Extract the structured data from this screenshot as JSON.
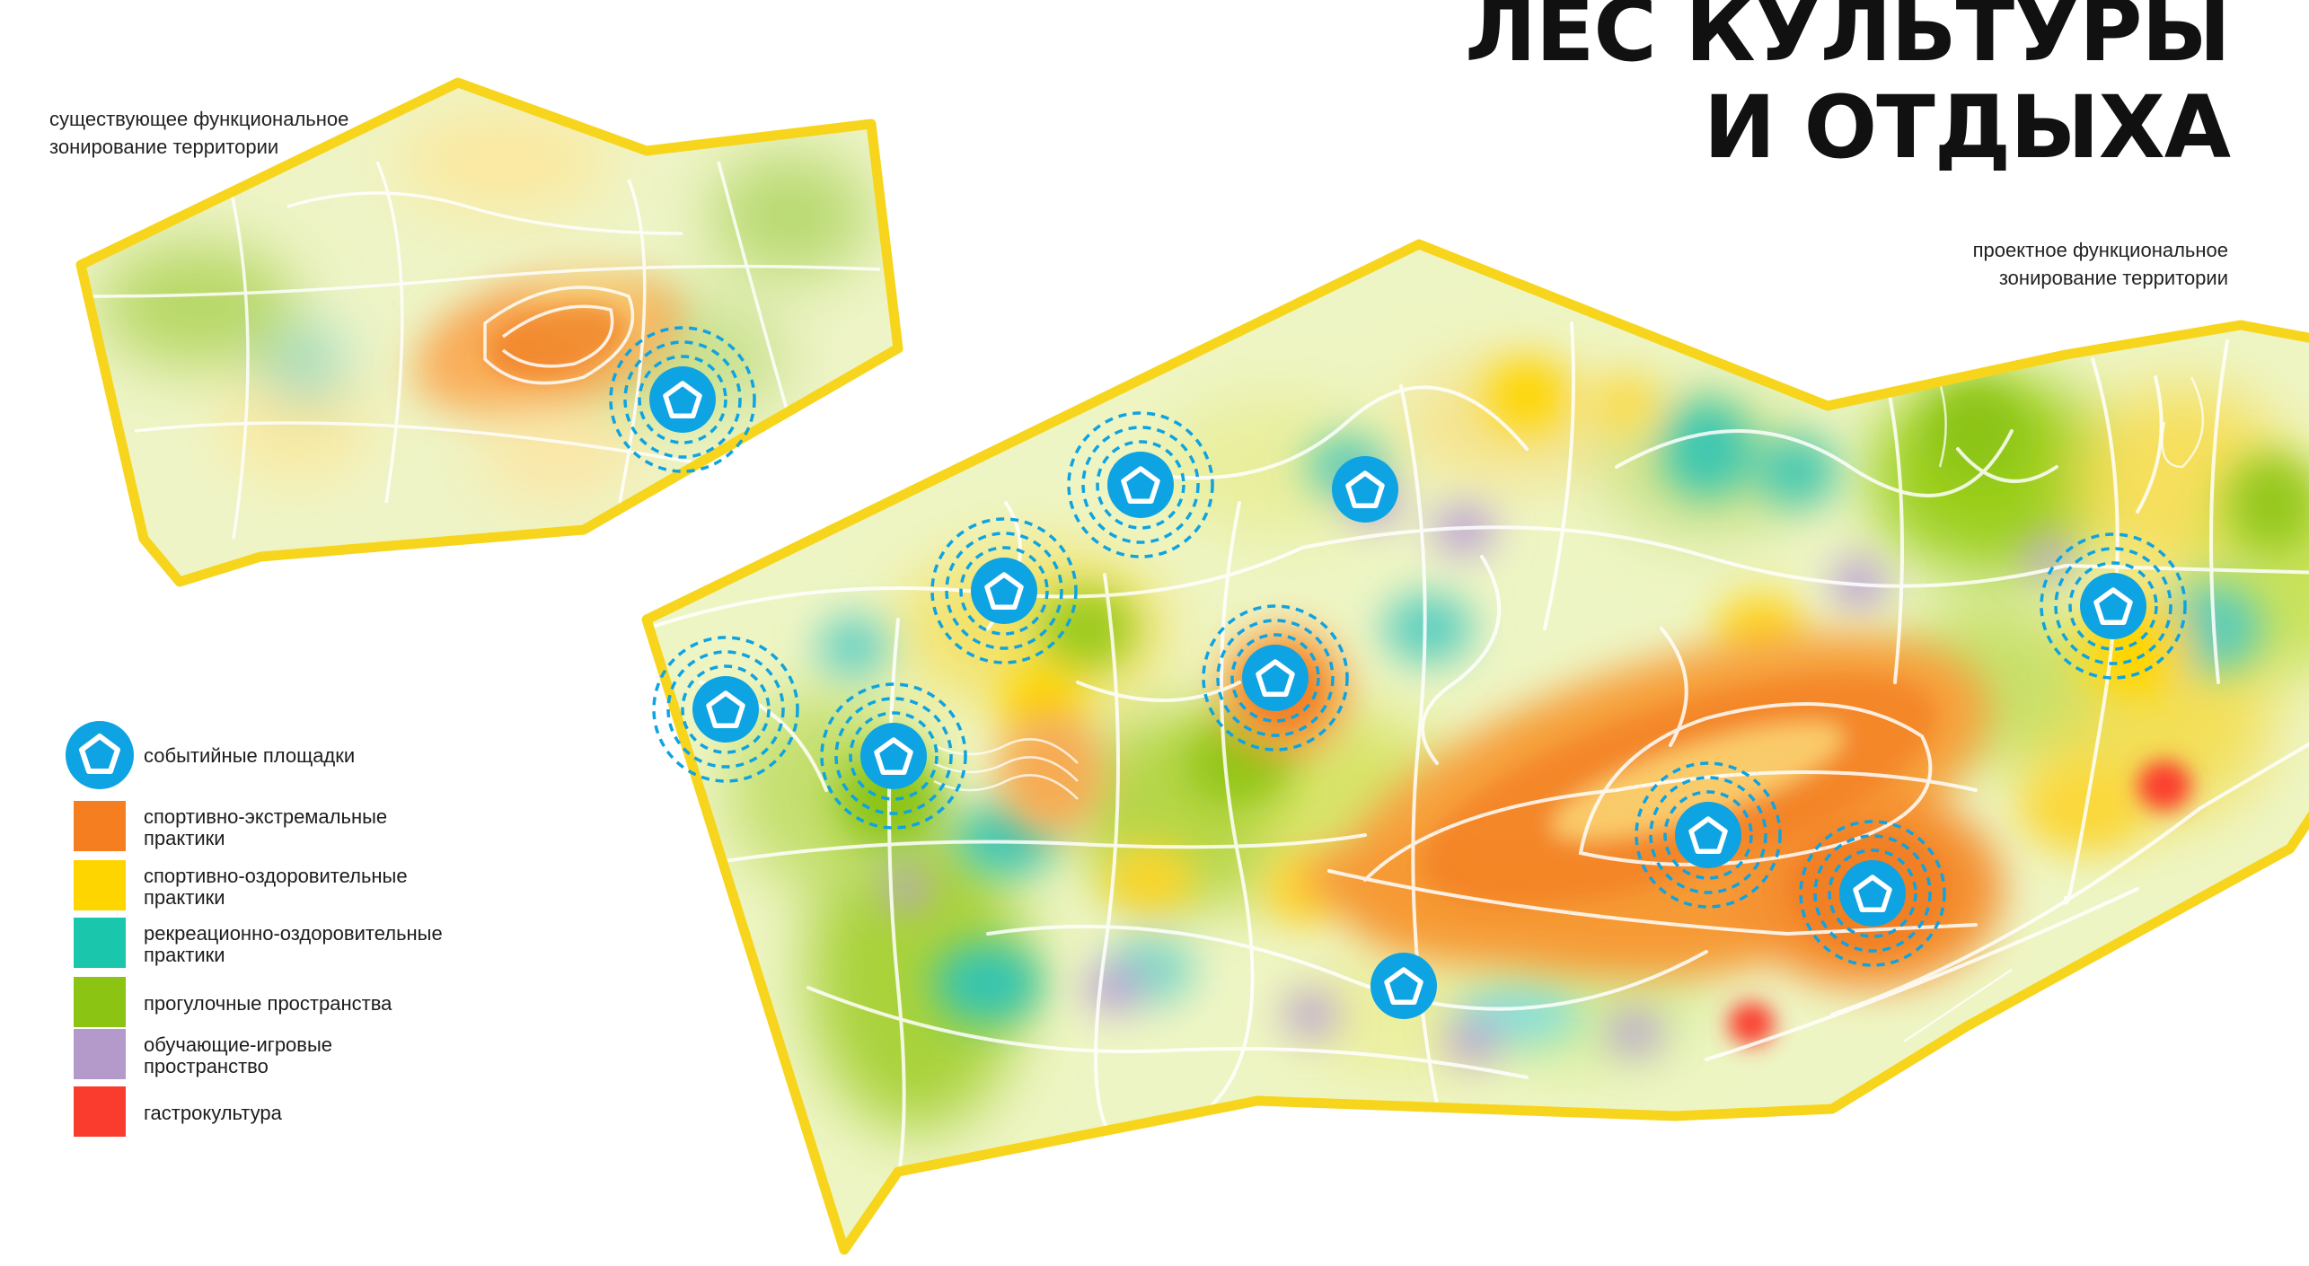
{
  "title": {
    "line1": "ЛЕС КУЛЬТУРЫ",
    "line2": "И ОТДЫХА"
  },
  "captions": {
    "existing": {
      "line1": "существующее функциональное",
      "line2": "зонирование территории"
    },
    "project": {
      "line1": "проектное функциональное",
      "line2": "зонирование территории"
    }
  },
  "legend": {
    "event_sites": {
      "label": "событийные площадки",
      "icon": "pentagon-marker-icon",
      "color": "#0ea3e2"
    },
    "zones": [
      {
        "key": "sport_extreme",
        "line1": "спортивно-экстремальные",
        "line2": "практики",
        "color": "#f57f20"
      },
      {
        "key": "sport_health",
        "line1": "спортивно-оздоровительные",
        "line2": "практики",
        "color": "#ffd500"
      },
      {
        "key": "recreation",
        "line1": "рекреационно-оздоровительные",
        "line2": "практики",
        "color": "#1bc7ac"
      },
      {
        "key": "walking",
        "line1": "прогулочные пространства",
        "line2": "",
        "color": "#8cc414"
      },
      {
        "key": "education",
        "line1": "обучающие-игровые",
        "line2": "пространство",
        "color": "#b39acb"
      },
      {
        "key": "gastro",
        "line1": "гастрокультура",
        "line2": "",
        "color": "#fa3c2e"
      }
    ]
  },
  "colors": {
    "boundary": "#f7d51d",
    "base": "#eef5c4",
    "marker": "#0ea3e2",
    "paths": "#ffffff"
  }
}
